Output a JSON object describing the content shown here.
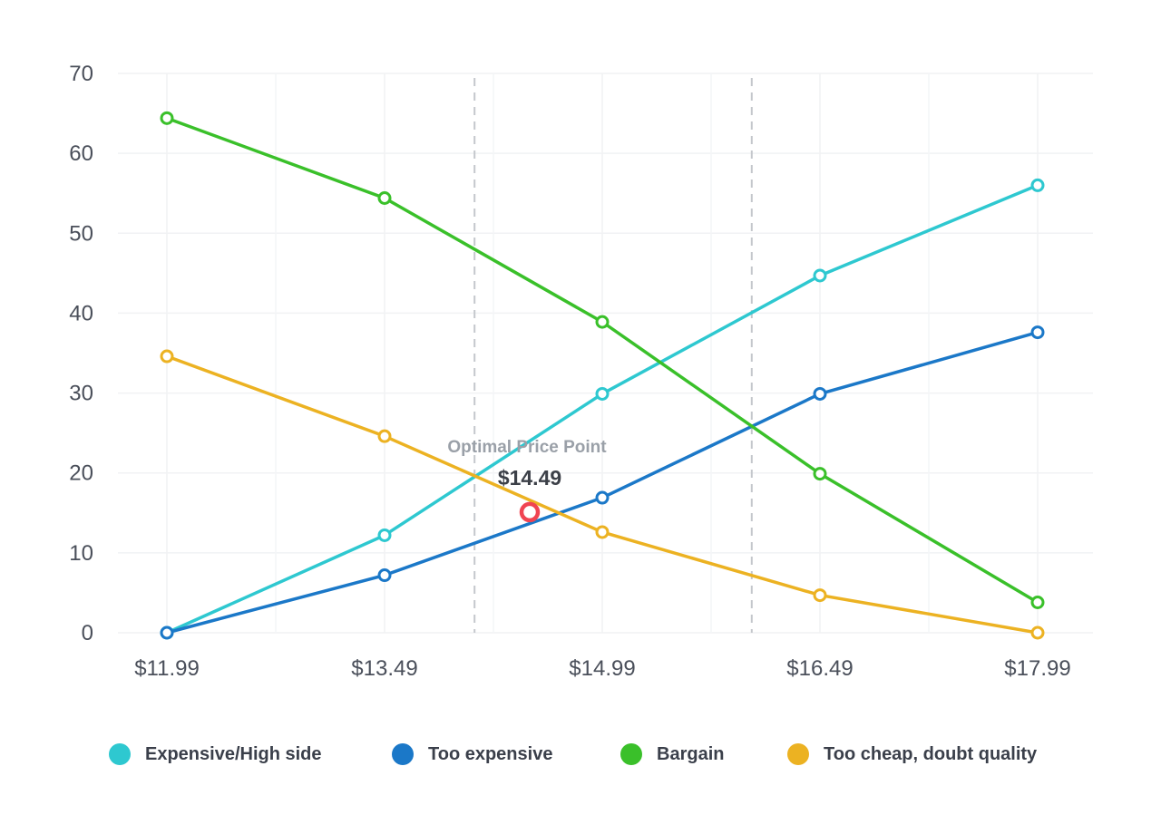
{
  "chart_data": {
    "type": "line",
    "x": [
      "$11.99",
      "$13.49",
      "$14.99",
      "$16.49",
      "$17.99"
    ],
    "ylim": [
      0,
      70
    ],
    "yticks": [
      0,
      10,
      20,
      30,
      40,
      50,
      60,
      70
    ],
    "grid": true,
    "legend_position": "bottom",
    "series": [
      {
        "name": "Expensive/High side",
        "color": "#2ec8d0",
        "values": [
          0,
          12.2,
          29.9,
          44.7,
          56
        ]
      },
      {
        "name": "Too expensive",
        "color": "#1b78c8",
        "values": [
          0,
          7.2,
          16.9,
          29.9,
          37.6
        ]
      },
      {
        "name": "Bargain",
        "color": "#3ac02a",
        "values": [
          64.4,
          54.4,
          38.9,
          19.9,
          3.8
        ]
      },
      {
        "name": "Too cheap, doubt quality",
        "color": "#ecb222",
        "values": [
          34.6,
          24.6,
          12.6,
          4.7,
          0
        ]
      }
    ],
    "reference_lines_x": [
      14.11,
      16.02
    ],
    "annotation": {
      "label": "Optimal Price Point",
      "value_label": "$14.49",
      "x": 14.49,
      "y": 15.1,
      "marker_color": "#f04452"
    }
  }
}
